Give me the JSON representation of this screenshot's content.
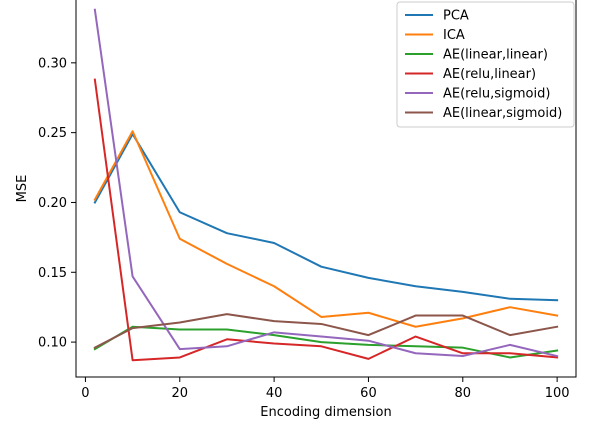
{
  "chart_data": {
    "type": "line",
    "title": "",
    "xlabel": "Encoding dimension",
    "ylabel": "MSE",
    "xlim": [
      -2,
      104
    ],
    "ylim": [
      0.075,
      0.345
    ],
    "xticks": [
      0,
      20,
      40,
      60,
      80,
      100
    ],
    "yticks": [
      0.1,
      0.15,
      0.2,
      0.25,
      0.3
    ],
    "ytick_labels": [
      "0.10",
      "0.15",
      "0.20",
      "0.25",
      "0.30"
    ],
    "grid": false,
    "legend_position": "top-right",
    "x": [
      2,
      10,
      20,
      30,
      40,
      50,
      60,
      70,
      80,
      90,
      100
    ],
    "series": [
      {
        "name": "PCA",
        "color": "#1f77b4",
        "values": [
          0.2,
          0.249,
          0.193,
          0.178,
          0.171,
          0.154,
          0.146,
          0.14,
          0.136,
          0.131,
          0.13
        ]
      },
      {
        "name": "ICA",
        "color": "#ff7f0e",
        "values": [
          0.202,
          0.251,
          0.174,
          0.156,
          0.14,
          0.118,
          0.121,
          0.111,
          0.117,
          0.125,
          0.119
        ]
      },
      {
        "name": "AE(linear,linear)",
        "color": "#2ca02c",
        "values": [
          0.095,
          0.111,
          0.109,
          0.109,
          0.105,
          0.1,
          0.098,
          0.097,
          0.096,
          0.089,
          0.094
        ]
      },
      {
        "name": "AE(relu,linear)",
        "color": "#d62728",
        "values": [
          0.288,
          0.087,
          0.089,
          0.102,
          0.099,
          0.097,
          0.088,
          0.104,
          0.092,
          0.092,
          0.089
        ]
      },
      {
        "name": "AE(relu,sigmoid)",
        "color": "#9467bd",
        "values": [
          0.338,
          0.147,
          0.095,
          0.097,
          0.107,
          0.104,
          0.101,
          0.092,
          0.09,
          0.098,
          0.09
        ]
      },
      {
        "name": "AE(linear,sigmoid)",
        "color": "#8c564b",
        "values": [
          0.096,
          0.11,
          0.114,
          0.12,
          0.115,
          0.113,
          0.105,
          0.119,
          0.119,
          0.105,
          0.111
        ]
      }
    ]
  }
}
